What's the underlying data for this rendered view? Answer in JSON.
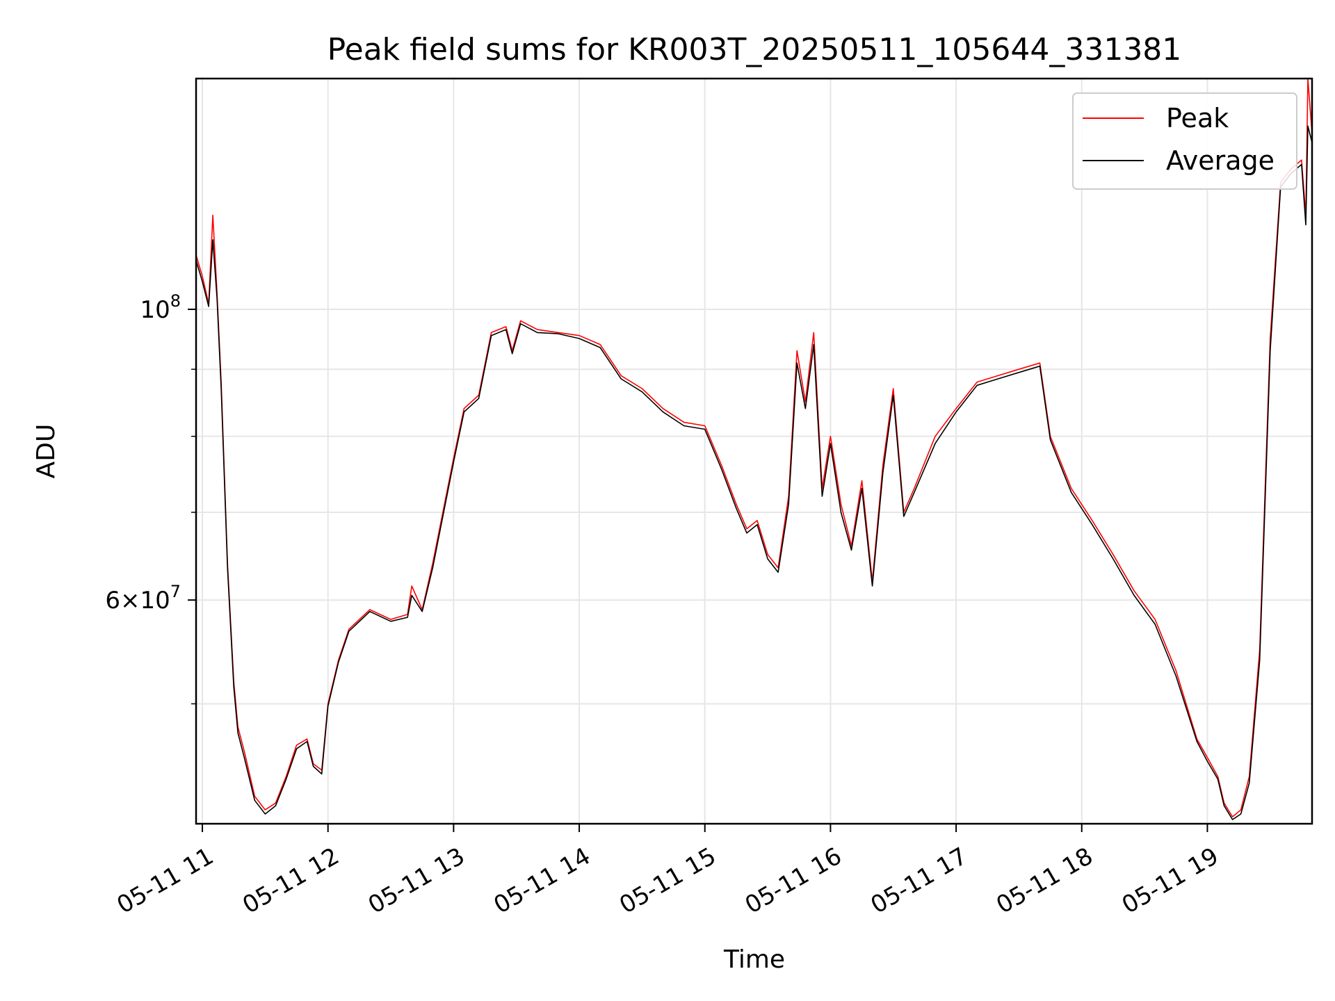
{
  "chart_data": {
    "type": "line",
    "title": "Peak field sums for KR003T_20250511_105644_331381",
    "xlabel": "Time",
    "ylabel": "ADU",
    "yscale": "log",
    "ylim": [
      40500000,
      150000000
    ],
    "xlim": [
      "2025-05-11 10:57",
      "2025-05-11 19:50"
    ],
    "x_ticks": [
      "2025-05-11 11:00",
      "2025-05-11 12:00",
      "2025-05-11 13:00",
      "2025-05-11 14:00",
      "2025-05-11 15:00",
      "2025-05-11 16:00",
      "2025-05-11 17:00",
      "2025-05-11 18:00",
      "2025-05-11 19:00"
    ],
    "x_tick_labels": [
      "05-11 11",
      "05-11 12",
      "05-11 13",
      "05-11 14",
      "05-11 15",
      "05-11 16",
      "05-11 17",
      "05-11 18",
      "05-11 19"
    ],
    "y_major_ticks": [
      100000000,
      60000000
    ],
    "y_major_tick_labels": [
      {
        "base": "10",
        "exp": "8"
      },
      {
        "base": "6×10",
        "exp": "7"
      }
    ],
    "y_minor_ticks": [
      50000000,
      70000000,
      80000000,
      90000000
    ],
    "grid": true,
    "legend_position": "top-right",
    "series": [
      {
        "name": "Peak",
        "color": "#ff0000",
        "x": [
          "2025-05-11 10:57",
          "2025-05-11 11:00",
          "2025-05-11 11:03",
          "2025-05-11 11:05",
          "2025-05-11 11:07",
          "2025-05-11 11:09",
          "2025-05-11 11:12",
          "2025-05-11 11:15",
          "2025-05-11 11:17",
          "2025-05-11 11:20",
          "2025-05-11 11:25",
          "2025-05-11 11:30",
          "2025-05-11 11:35",
          "2025-05-11 11:40",
          "2025-05-11 11:45",
          "2025-05-11 11:50",
          "2025-05-11 11:53",
          "2025-05-11 11:57",
          "2025-05-11 12:00",
          "2025-05-11 12:05",
          "2025-05-11 12:10",
          "2025-05-11 12:20",
          "2025-05-11 12:30",
          "2025-05-11 12:38",
          "2025-05-11 12:40",
          "2025-05-11 12:45",
          "2025-05-11 12:50",
          "2025-05-11 13:00",
          "2025-05-11 13:05",
          "2025-05-11 13:12",
          "2025-05-11 13:18",
          "2025-05-11 13:25",
          "2025-05-11 13:28",
          "2025-05-11 13:32",
          "2025-05-11 13:40",
          "2025-05-11 13:50",
          "2025-05-11 14:00",
          "2025-05-11 14:10",
          "2025-05-11 14:20",
          "2025-05-11 14:30",
          "2025-05-11 14:40",
          "2025-05-11 14:50",
          "2025-05-11 15:00",
          "2025-05-11 15:08",
          "2025-05-11 15:15",
          "2025-05-11 15:20",
          "2025-05-11 15:25",
          "2025-05-11 15:30",
          "2025-05-11 15:35",
          "2025-05-11 15:40",
          "2025-05-11 15:44",
          "2025-05-11 15:48",
          "2025-05-11 15:52",
          "2025-05-11 15:56",
          "2025-05-11 16:00",
          "2025-05-11 16:05",
          "2025-05-11 16:10",
          "2025-05-11 16:15",
          "2025-05-11 16:20",
          "2025-05-11 16:25",
          "2025-05-11 16:30",
          "2025-05-11 16:35",
          "2025-05-11 16:40",
          "2025-05-11 16:50",
          "2025-05-11 17:00",
          "2025-05-11 17:10",
          "2025-05-11 17:20",
          "2025-05-11 17:30",
          "2025-05-11 17:40",
          "2025-05-11 17:45",
          "2025-05-11 17:55",
          "2025-05-11 18:05",
          "2025-05-11 18:15",
          "2025-05-11 18:25",
          "2025-05-11 18:35",
          "2025-05-11 18:45",
          "2025-05-11 18:55",
          "2025-05-11 19:00",
          "2025-05-11 19:05",
          "2025-05-11 19:08",
          "2025-05-11 19:12",
          "2025-05-11 19:16",
          "2025-05-11 19:20",
          "2025-05-11 19:25",
          "2025-05-11 19:30",
          "2025-05-11 19:35",
          "2025-05-11 19:40",
          "2025-05-11 19:45",
          "2025-05-11 19:47",
          "2025-05-11 19:48",
          "2025-05-11 19:50"
        ],
        "values": [
          110000000,
          106000000,
          101000000,
          118000000,
          103000000,
          88000000,
          64000000,
          52000000,
          48000000,
          46000000,
          42500000,
          41500000,
          42000000,
          44000000,
          46500000,
          47000000,
          45000000,
          44500000,
          50000000,
          54000000,
          57000000,
          59000000,
          58000000,
          58500000,
          61500000,
          59000000,
          64000000,
          77000000,
          84000000,
          86000000,
          96000000,
          97000000,
          93000000,
          98000000,
          96500000,
          96000000,
          95500000,
          94000000,
          89000000,
          87000000,
          84000000,
          82000000,
          81500000,
          76000000,
          71000000,
          68000000,
          69000000,
          65000000,
          63500000,
          72000000,
          93000000,
          85000000,
          96000000,
          73000000,
          80000000,
          71000000,
          66000000,
          74000000,
          62000000,
          76000000,
          87000000,
          70000000,
          73000000,
          80000000,
          84000000,
          88000000,
          89000000,
          90000000,
          91000000,
          80000000,
          73000000,
          69000000,
          65000000,
          61000000,
          58000000,
          53000000,
          47000000,
          45500000,
          44000000,
          42000000,
          41000000,
          41500000,
          44000000,
          55000000,
          95000000,
          125000000,
          128000000,
          130000000,
          118000000,
          150000000,
          136000000
        ]
      },
      {
        "name": "Average",
        "color": "#000000",
        "x": [
          "2025-05-11 10:57",
          "2025-05-11 11:00",
          "2025-05-11 11:03",
          "2025-05-11 11:05",
          "2025-05-11 11:07",
          "2025-05-11 11:09",
          "2025-05-11 11:12",
          "2025-05-11 11:15",
          "2025-05-11 11:17",
          "2025-05-11 11:20",
          "2025-05-11 11:25",
          "2025-05-11 11:30",
          "2025-05-11 11:35",
          "2025-05-11 11:40",
          "2025-05-11 11:45",
          "2025-05-11 11:50",
          "2025-05-11 11:53",
          "2025-05-11 11:57",
          "2025-05-11 12:00",
          "2025-05-11 12:05",
          "2025-05-11 12:10",
          "2025-05-11 12:20",
          "2025-05-11 12:30",
          "2025-05-11 12:38",
          "2025-05-11 12:40",
          "2025-05-11 12:45",
          "2025-05-11 12:50",
          "2025-05-11 13:00",
          "2025-05-11 13:05",
          "2025-05-11 13:12",
          "2025-05-11 13:18",
          "2025-05-11 13:25",
          "2025-05-11 13:28",
          "2025-05-11 13:32",
          "2025-05-11 13:40",
          "2025-05-11 13:50",
          "2025-05-11 14:00",
          "2025-05-11 14:10",
          "2025-05-11 14:20",
          "2025-05-11 14:30",
          "2025-05-11 14:40",
          "2025-05-11 14:50",
          "2025-05-11 15:00",
          "2025-05-11 15:08",
          "2025-05-11 15:15",
          "2025-05-11 15:20",
          "2025-05-11 15:25",
          "2025-05-11 15:30",
          "2025-05-11 15:35",
          "2025-05-11 15:40",
          "2025-05-11 15:44",
          "2025-05-11 15:48",
          "2025-05-11 15:52",
          "2025-05-11 15:56",
          "2025-05-11 16:00",
          "2025-05-11 16:05",
          "2025-05-11 16:10",
          "2025-05-11 16:15",
          "2025-05-11 16:20",
          "2025-05-11 16:25",
          "2025-05-11 16:30",
          "2025-05-11 16:35",
          "2025-05-11 16:40",
          "2025-05-11 16:50",
          "2025-05-11 17:00",
          "2025-05-11 17:10",
          "2025-05-11 17:20",
          "2025-05-11 17:30",
          "2025-05-11 17:40",
          "2025-05-11 17:45",
          "2025-05-11 17:55",
          "2025-05-11 18:05",
          "2025-05-11 18:15",
          "2025-05-11 18:25",
          "2025-05-11 18:35",
          "2025-05-11 18:45",
          "2025-05-11 18:55",
          "2025-05-11 19:00",
          "2025-05-11 19:05",
          "2025-05-11 19:08",
          "2025-05-11 19:12",
          "2025-05-11 19:16",
          "2025-05-11 19:20",
          "2025-05-11 19:25",
          "2025-05-11 19:30",
          "2025-05-11 19:35",
          "2025-05-11 19:40",
          "2025-05-11 19:45",
          "2025-05-11 19:47",
          "2025-05-11 19:48",
          "2025-05-11 19:50"
        ],
        "values": [
          109000000,
          105000000,
          100500000,
          113000000,
          102000000,
          87000000,
          63500000,
          51500000,
          47500000,
          45500000,
          42200000,
          41200000,
          41800000,
          43800000,
          46200000,
          46800000,
          44800000,
          44200000,
          49800000,
          53800000,
          56800000,
          58800000,
          57800000,
          58200000,
          60500000,
          58800000,
          63500000,
          76500000,
          83500000,
          85500000,
          95500000,
          96500000,
          92500000,
          97500000,
          96000000,
          95800000,
          95000000,
          93500000,
          88500000,
          86500000,
          83500000,
          81500000,
          81000000,
          75500000,
          70500000,
          67500000,
          68500000,
          64500000,
          63000000,
          71000000,
          91000000,
          84000000,
          94000000,
          72000000,
          79000000,
          70000000,
          65500000,
          73000000,
          61500000,
          75000000,
          86000000,
          69500000,
          72500000,
          79000000,
          83500000,
          87500000,
          88500000,
          89500000,
          90500000,
          79500000,
          72500000,
          68500000,
          64500000,
          60500000,
          57500000,
          52500000,
          46800000,
          45200000,
          43800000,
          41800000,
          40800000,
          41200000,
          43500000,
          54000000,
          93000000,
          124000000,
          127000000,
          129000000,
          116000000,
          138000000,
          134000000
        ]
      }
    ]
  }
}
